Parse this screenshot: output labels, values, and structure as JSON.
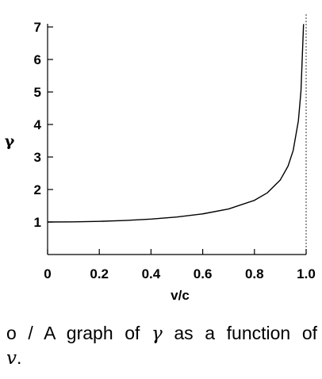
{
  "chart_data": {
    "type": "line",
    "xlabel": "v/c",
    "ylabel": "γ",
    "xlim": [
      0,
      1.0
    ],
    "ylim": [
      0,
      7
    ],
    "xticks": [
      "0",
      "0.2",
      "0.4",
      "0.6",
      "0.8",
      "1.0"
    ],
    "yticks": [
      "1",
      "2",
      "3",
      "4",
      "5",
      "6",
      "7"
    ],
    "series": [
      {
        "values": [
          {
            "x": 0.0,
            "y": 1.0
          },
          {
            "x": 0.1,
            "y": 1.005
          },
          {
            "x": 0.2,
            "y": 1.02
          },
          {
            "x": 0.3,
            "y": 1.048
          },
          {
            "x": 0.4,
            "y": 1.091
          },
          {
            "x": 0.5,
            "y": 1.155
          },
          {
            "x": 0.6,
            "y": 1.25
          },
          {
            "x": 0.7,
            "y": 1.4
          },
          {
            "x": 0.8,
            "y": 1.667
          },
          {
            "x": 0.85,
            "y": 1.898
          },
          {
            "x": 0.9,
            "y": 2.294
          },
          {
            "x": 0.93,
            "y": 2.72
          },
          {
            "x": 0.95,
            "y": 3.203
          },
          {
            "x": 0.97,
            "y": 4.113
          },
          {
            "x": 0.98,
            "y": 5.025
          },
          {
            "x": 0.99,
            "y": 7.089
          }
        ]
      }
    ],
    "asymptote_x": 1.0
  },
  "caption": {
    "prefix": "o / A graph of",
    "symbol": "γ",
    "middle": "as a function of",
    "line2_var": "v",
    "line2_end": "."
  }
}
